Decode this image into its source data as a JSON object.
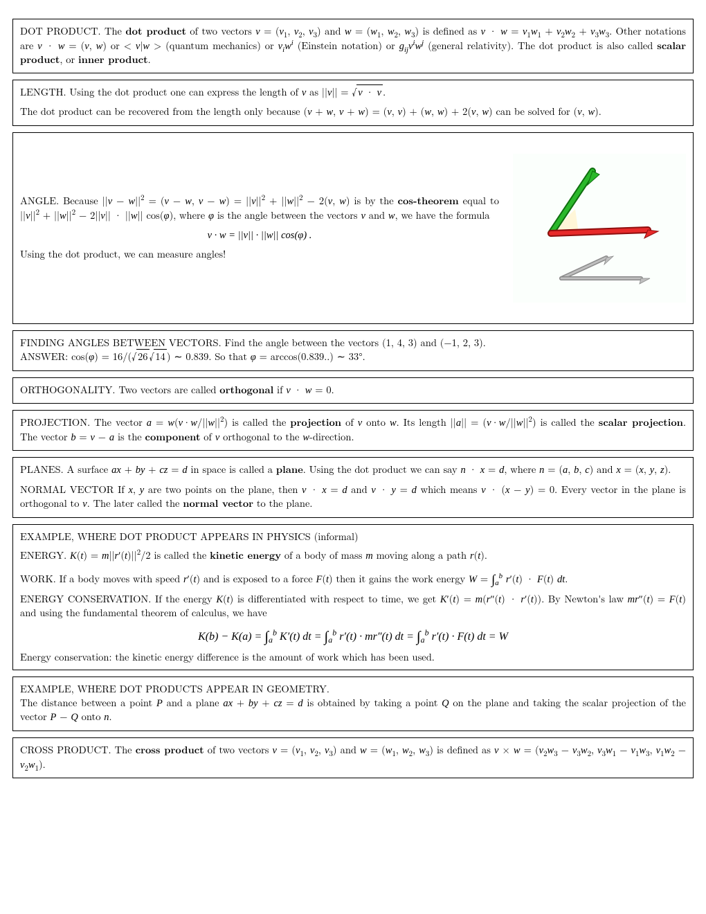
{
  "dotproduct": {
    "title": "DOT PRODUCT.",
    "body": "The <b>dot product</b> of two vectors <span class='math'>v</span> = (<span class='math'>v</span><sub>1</sub>, <span class='math'>v</span><sub>2</sub>, <span class='math'>v</span><sub>3</sub>) and <span class='math'>w</span> = (<span class='math'>w</span><sub>1</sub>, <span class='math'>w</span><sub>2</sub>, <span class='math'>w</span><sub>3</sub>) is defined as <span class='math'>v</span> · <span class='math'>w</span> = <span class='math'>v</span><sub>1</sub><span class='math'>w</span><sub>1</sub> + <span class='math'>v</span><sub>2</sub><span class='math'>w</span><sub>2</sub> + <span class='math'>v</span><sub>3</sub><span class='math'>w</span><sub>3</sub>. Other notations are <span class='math'>v</span> · <span class='math'>w</span> = (<span class='math'>v</span>, <span class='math'>w</span>) or &lt; <span class='math'>v</span>|<span class='math'>w</span> &gt; (quantum mechanics) or <span class='math'>v<sub>i</sub>w<sup>i</sup></span> (Einstein notation) or <span class='math'>g<sub>ij</sub>v<sup>i</sup>w<sup>j</sup></span> (general relativity). The dot product is also called <b>scalar product</b>, or <b>inner product</b>."
  },
  "length": {
    "title": "LENGTH.",
    "body": "Using the dot product one can express the length of <span class='math'>v</span> as ||<span class='math'>v</span>|| = √<span class='sqrt'><span class='math'>v</span> · <span class='math'>v</span></span>.",
    "body2": "The dot product can be recovered from the length only because (<span class='math'>v</span> + <span class='math'>w</span>, <span class='math'>v</span> + <span class='math'>w</span>) = (<span class='math'>v</span>, <span class='math'>v</span>) + (<span class='math'>w</span>, <span class='math'>w</span>) + 2(<span class='math'>v</span>, <span class='math'>w</span>) can be solved for (<span class='math'>v</span>, <span class='math'>w</span>)."
  },
  "angle": {
    "title": "ANGLE.",
    "body": "Because ||<span class='math'>v</span> − <span class='math'>w</span>||<sup>2</sup> = (<span class='math'>v</span> − <span class='math'>w</span>, <span class='math'>v</span> − <span class='math'>w</span>) = ||<span class='math'>v</span>||<sup>2</sup> + ||<span class='math'>w</span>||<sup>2</sup> − 2(<span class='math'>v</span>, <span class='math'>w</span>) is by the <b>cos-theorem</b> equal to ||<span class='math'>v</span>||<sup>2</sup> + ||<span class='math'>w</span>||<sup>2</sup> − 2||<span class='math'>v</span>|| · ||<span class='math'>w</span>|| cos(<span class='math'>φ</span>), where <span class='math'>φ</span> is the angle between the vectors <span class='math'>v</span> and <span class='math'>w</span>, we have the formula",
    "eq": "<span class='math'>v</span> · <span class='math'>w</span> = ||<span class='math'>v</span>|| · ||<span class='math'>w</span>|| cos(<span class='math'>φ</span>) .",
    "body2": "Using the dot product, we can measure angles!",
    "fig": {
      "bg": "#fbfffc",
      "shadow_bg": "#fff6d8",
      "green": "#2bb82b",
      "green_dk": "#0f6f0f",
      "red": "#e72a2a",
      "red_dk": "#8f0e0e",
      "gray": "#bfbfbf",
      "gray_dk": "#8a8a8a"
    }
  },
  "finding": {
    "title": "FINDING ANGLES BETWEEN VECTORS.",
    "body": "Find the angle between the vectors (1, 4, 3) and (−1, 2, 3).<br>ANSWER: cos(<span class='math'>φ</span>) = 16/(√<span class='sqrt'>26</span>√<span class='sqrt'>14</span>) ∼ 0.839. So that <span class='math'>φ</span> = arccos(0.839..) ∼ 33°."
  },
  "orth": {
    "title": "ORTHOGONALITY.",
    "body": "Two vectors are called <b>orthogonal</b> if <span class='math'>v</span> · <span class='math'>w</span> = 0."
  },
  "proj": {
    "title": "PROJECTION.",
    "body": "The vector <span class='math'>a</span> = <span class='math'>w</span>(<span class='math'>v</span>·<span class='math'>w</span>/||<span class='math'>w</span>||<sup>2</sup>) is called the <b>projection</b> of <span class='math'>v</span> onto <span class='math'>w</span>. Its length ||<span class='math'>a</span>|| = (<span class='math'>v</span>·<span class='math'>w</span>/||<span class='math'>w</span>||<sup>2</sup>) is called the <b>scalar projection</b>. The vector <span class='math'>b</span> = <span class='math'>v</span> − <span class='math'>a</span> is the <b>component</b> of <span class='math'>v</span> orthogonal to the <span class='math'>w</span>-direction."
  },
  "planes": {
    "title": "PLANES.",
    "body": "A surface <span class='math'>ax</span> + <span class='math'>by</span> + <span class='math'>cz</span> = <span class='math'>d</span> in space is called a <b>plane</b>. Using the dot product we can say <span class='math'>n</span> · <span class='math'>x</span> = <span class='math'>d</span>, where <span class='math'>n</span> = (<span class='math'>a</span>, <span class='math'>b</span>, <span class='math'>c</span>) and <span class='math'>x</span> = (<span class='math'>x</span>, <span class='math'>y</span>, <span class='math'>z</span>).",
    "title2": "NORMAL VECTOR",
    "body2": "If <span class='math'>x</span>, <span class='math'>y</span> are two points on the plane, then <span class='math'>v</span> · <span class='math'>x</span> = <span class='math'>d</span> and <span class='math'>v</span> · <span class='math'>y</span> = <span class='math'>d</span> which means <span class='math'>v</span> · (<span class='math'>x</span> − <span class='math'>y</span>) = 0. Every vector in the plane is orthogonal to <span class='math'>v</span>. The later called the <b>normal vector</b> to the plane."
  },
  "physics": {
    "title": "EXAMPLE, WHERE DOT PRODUCT APPEARS IN PHYSICS (informal)",
    "energy_t": "ENERGY.",
    "energy": "<span class='math'>K</span>(<span class='math'>t</span>) = <span class='math'>m</span>||<span class='math'>r</span>′(<span class='math'>t</span>)||<sup>2</sup>/2 is called the <b>kinetic energy</b> of a body of mass <span class='math'>m</span> moving along a path <span class='math'>r</span>(<span class='math'>t</span>).",
    "work_t": "WORK.",
    "work": "If a body moves with speed <span class='math'>r</span>′(<span class='math'>t</span>) and is exposed to a force <span class='math'>F</span>(<span class='math'>t</span>) then it gains the work energy <span class='math'>W</span> = <span class='integral'>∫</span><sub><span class='math'>a</span></sub><sup><span class='math'>b</span></sup> <span class='math'>r</span>′(<span class='math'>t</span>) · <span class='math'>F</span>(<span class='math'>t</span>) <span class='math'>dt</span>.",
    "ec_t": "ENERGY CONSERVATION.",
    "ec": "If the energy <span class='math'>K</span>(<span class='math'>t</span>) is differentiated with respect to time, we get <span class='math'>K</span>′(<span class='math'>t</span>) = <span class='math'>m</span>(<span class='math'>r</span>″(<span class='math'>t</span>) · <span class='math'>r</span>′(<span class='math'>t</span>)). By Newton's law <span class='math'>mr</span>″(<span class='math'>t</span>) = <span class='math'>F</span>(<span class='math'>t</span>) and using the fundamental theorem of calculus, we have",
    "eq": "<span class='math'>K</span>(<span class='math'>b</span>) − <span class='math'>K</span>(<span class='math'>a</span>) = <span class='integral'>∫</span><sub><span class='math'>a</span></sub><sup><span class='math'>b</span></sup> <span class='math'>K</span>′(<span class='math'>t</span>) <span class='math'>dt</span> = <span class='integral'>∫</span><sub><span class='math'>a</span></sub><sup><span class='math'>b</span></sup> <span class='math'>r</span>′(<span class='math'>t</span>) · <span class='math'>mr</span>″(<span class='math'>t</span>) <span class='math'>dt</span> = <span class='integral'>∫</span><sub><span class='math'>a</span></sub><sup><span class='math'>b</span></sup> <span class='math'>r</span>′(<span class='math'>t</span>) · <span class='math'>F</span>(<span class='math'>t</span>) <span class='math'>dt</span> = <span class='math'>W</span>",
    "tail": "Energy conservation: the kinetic energy difference is the amount of work which has been used."
  },
  "geometry": {
    "title": "EXAMPLE, WHERE DOT PRODUCTS APPEAR IN GEOMETRY.",
    "body": "The distance between a point <span class='math'>P</span> and a plane <span class='math'>ax</span> + <span class='math'>by</span> + <span class='math'>cz</span> = <span class='math'>d</span> is obtained by taking a point <span class='math'>Q</span> on the plane and taking the scalar projection of the vector <span class='math'>P</span> − <span class='math'>Q</span> onto <span class='math'>n</span>."
  },
  "cross": {
    "title": "CROSS PRODUCT.",
    "body": "The <b>cross product</b> of two vectors <span class='math'>v</span> = (<span class='math'>v</span><sub>1</sub>, <span class='math'>v</span><sub>2</sub>, <span class='math'>v</span><sub>3</sub>) and <span class='math'>w</span> = (<span class='math'>w</span><sub>1</sub>, <span class='math'>w</span><sub>2</sub>, <span class='math'>w</span><sub>3</sub>) is defined as <span class='math'>v</span> × <span class='math'>w</span> = (<span class='math'>v</span><sub>2</sub><span class='math'>w</span><sub>3</sub> − <span class='math'>v</span><sub>3</sub><span class='math'>w</span><sub>2</sub>, <span class='math'>v</span><sub>3</sub><span class='math'>w</span><sub>1</sub> − <span class='math'>v</span><sub>1</sub><span class='math'>w</span><sub>3</sub>, <span class='math'>v</span><sub>1</sub><span class='math'>w</span><sub>2</sub> − <span class='math'>v</span><sub>2</sub><span class='math'>w</span><sub>1</sub>)."
  }
}
